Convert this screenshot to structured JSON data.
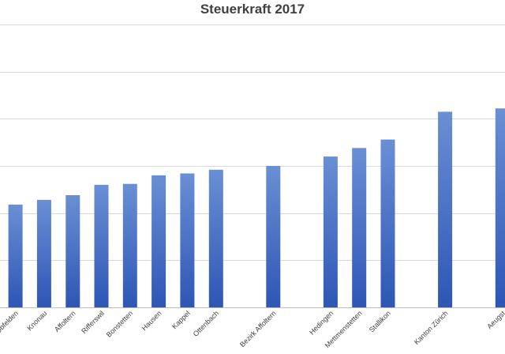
{
  "chart_data": {
    "type": "bar",
    "title": "Steuerkraft 2017",
    "xlabel": "",
    "ylabel": "",
    "grid": true,
    "legend": "none",
    "color_top": "#6a8fd4",
    "color_bottom": "#2d56b5",
    "ylim": [
      0,
      6
    ],
    "categories": [
      "Obfelden",
      "Knonau",
      "Affoltern",
      "Rifferswil",
      "Bonstetten",
      "Hausen",
      "Kappel",
      "Ottenbach",
      "",
      "Bezirk Affoltern",
      "",
      "Hedingen",
      "Mettmenstetten",
      "Stallikon",
      "",
      "Kanton Zürich",
      "",
      "Aeugst"
    ],
    "values": [
      2.18,
      2.28,
      2.38,
      2.6,
      2.62,
      2.8,
      2.84,
      2.92,
      null,
      3.0,
      null,
      3.2,
      3.38,
      3.56,
      null,
      4.15,
      null,
      4.22
    ]
  }
}
